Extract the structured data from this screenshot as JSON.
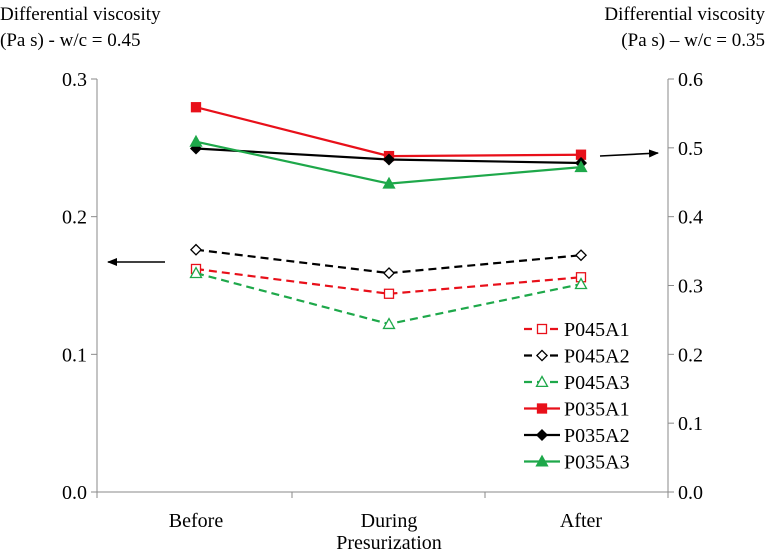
{
  "chart_data": {
    "type": "line",
    "categories": [
      "Before",
      "During",
      "After"
    ],
    "xlabel": "Presurization",
    "left_axis": {
      "title_line1": "Differential viscosity",
      "title_line2": "(Pa s) - w/c = 0.45",
      "ylim": [
        0,
        0.3
      ],
      "ticks": [
        "0.0",
        "0.1",
        "0.2",
        "0.3"
      ],
      "tick_values": [
        0,
        0.1,
        0.2,
        0.3
      ]
    },
    "right_axis": {
      "title_line1": "Differential viscosity",
      "title_line2": "(Pa s) – w/c = 0.35",
      "ylim": [
        0,
        0.6
      ],
      "ticks": [
        "0.0",
        "0.1",
        "0.2",
        "0.3",
        "0.4",
        "0.5",
        "0.6"
      ],
      "tick_values": [
        0,
        0.1,
        0.2,
        0.3,
        0.4,
        0.5,
        0.6
      ]
    },
    "series": [
      {
        "name": "P045A1",
        "axis": "left",
        "values": [
          0.162,
          0.144,
          0.156
        ],
        "color": "#e8101a",
        "dashed": true,
        "marker": "square",
        "filled": false
      },
      {
        "name": "P045A2",
        "axis": "left",
        "values": [
          0.176,
          0.159,
          0.172
        ],
        "color": "#000000",
        "dashed": true,
        "marker": "diamond",
        "filled": false
      },
      {
        "name": "P045A3",
        "axis": "left",
        "values": [
          0.159,
          0.122,
          0.151
        ],
        "color": "#1ea84a",
        "dashed": true,
        "marker": "triangle",
        "filled": false
      },
      {
        "name": "P035A1",
        "axis": "right",
        "values": [
          0.559,
          0.488,
          0.49
        ],
        "color": "#e8101a",
        "dashed": false,
        "marker": "square",
        "filled": true
      },
      {
        "name": "P035A2",
        "axis": "right",
        "values": [
          0.499,
          0.483,
          0.478
        ],
        "color": "#000000",
        "dashed": false,
        "marker": "diamond",
        "filled": true
      },
      {
        "name": "P035A3",
        "axis": "right",
        "values": [
          0.509,
          0.448,
          0.472
        ],
        "color": "#1ea84a",
        "dashed": false,
        "marker": "triangle",
        "filled": true
      }
    ],
    "annotations": [
      {
        "type": "arrow",
        "direction": "left",
        "points_to": "left-axis"
      },
      {
        "type": "arrow",
        "direction": "right",
        "points_to": "right-axis"
      }
    ],
    "legend": "bottom-right",
    "grid": false
  }
}
